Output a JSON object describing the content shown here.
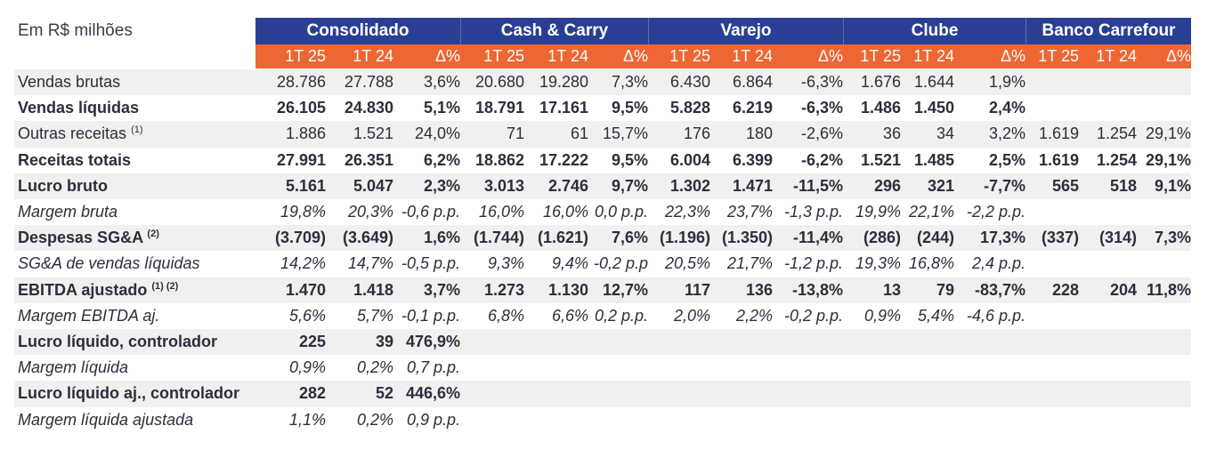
{
  "caption": "Em R$ milhões",
  "groups": [
    "Consolidado",
    "Cash & Carry",
    "Varejo",
    "Clube",
    "Banco Carrefour"
  ],
  "subheaders": [
    "1T 25",
    "1T 24",
    "Δ%"
  ],
  "rows": [
    {
      "label": "Vendas brutas",
      "sup": "",
      "style": "normal",
      "values": [
        "28.786",
        "27.788",
        "3,6%",
        "20.680",
        "19.280",
        "7,3%",
        "6.430",
        "6.864",
        "-6,3%",
        "1.676",
        "1.644",
        "1,9%",
        "",
        "",
        ""
      ]
    },
    {
      "label": "Vendas líquidas",
      "sup": "",
      "style": "bold",
      "values": [
        "26.105",
        "24.830",
        "5,1%",
        "18.791",
        "17.161",
        "9,5%",
        "5.828",
        "6.219",
        "-6,3%",
        "1.486",
        "1.450",
        "2,4%",
        "",
        "",
        ""
      ]
    },
    {
      "label": "Outras receitas",
      "sup": "(1)",
      "style": "normal",
      "values": [
        "1.886",
        "1.521",
        "24,0%",
        "71",
        "61",
        "15,7%",
        "176",
        "180",
        "-2,6%",
        "36",
        "34",
        "3,2%",
        "1.619",
        "1.254",
        "29,1%"
      ]
    },
    {
      "label": "Receitas totais",
      "sup": "",
      "style": "bold",
      "values": [
        "27.991",
        "26.351",
        "6,2%",
        "18.862",
        "17.222",
        "9,5%",
        "6.004",
        "6.399",
        "-6,2%",
        "1.521",
        "1.485",
        "2,5%",
        "1.619",
        "1.254",
        "29,1%"
      ]
    },
    {
      "label": "Lucro bruto",
      "sup": "",
      "style": "bold",
      "values": [
        "5.161",
        "5.047",
        "2,3%",
        "3.013",
        "2.746",
        "9,7%",
        "1.302",
        "1.471",
        "-11,5%",
        "296",
        "321",
        "-7,7%",
        "565",
        "518",
        "9,1%"
      ]
    },
    {
      "label": "Margem bruta",
      "sup": "",
      "style": "italic",
      "values": [
        "19,8%",
        "20,3%",
        "-0,6 p.p.",
        "16,0%",
        "16,0%",
        "0,0 p.p.",
        "22,3%",
        "23,7%",
        "-1,3 p.p.",
        "19,9%",
        "22,1%",
        "-2,2 p.p.",
        "",
        "",
        ""
      ]
    },
    {
      "label": "Despesas SG&A",
      "sup": "(2)",
      "style": "bold",
      "values": [
        "(3.709)",
        "(3.649)",
        "1,6%",
        "(1.744)",
        "(1.621)",
        "7,6%",
        "(1.196)",
        "(1.350)",
        "-11,4%",
        "(286)",
        "(244)",
        "17,3%",
        "(337)",
        "(314)",
        "7,3%"
      ]
    },
    {
      "label": "SG&A de vendas líquidas",
      "sup": "",
      "style": "italic",
      "values": [
        "14,2%",
        "14,7%",
        "-0,5 p.p.",
        "9,3%",
        "9,4%",
        "-0,2 p.p",
        "20,5%",
        "21,7%",
        "-1,2 p.p.",
        "19,3%",
        "16,8%",
        "2,4 p.p.",
        "",
        "",
        ""
      ]
    },
    {
      "label": "EBITDA ajustado",
      "sup": "(1) (2)",
      "style": "bold",
      "values": [
        "1.470",
        "1.418",
        "3,7%",
        "1.273",
        "1.130",
        "12,7%",
        "117",
        "136",
        "-13,8%",
        "13",
        "79",
        "-83,7%",
        "228",
        "204",
        "11,8%"
      ]
    },
    {
      "label": "Margem EBITDA aj.",
      "sup": "",
      "style": "italic",
      "values": [
        "5,6%",
        "5,7%",
        "-0,1 p.p.",
        "6,8%",
        "6,6%",
        "0,2 p.p.",
        "2,0%",
        "2,2%",
        "-0,2 p.p.",
        "0,9%",
        "5,4%",
        "-4,6 p.p.",
        "",
        "",
        ""
      ]
    },
    {
      "label": "Lucro líquido, controlador",
      "sup": "",
      "style": "bold",
      "values": [
        "225",
        "39",
        "476,9%",
        "",
        "",
        "",
        "",
        "",
        "",
        "",
        "",
        "",
        "",
        "",
        ""
      ]
    },
    {
      "label": "Margem líquida",
      "sup": "",
      "style": "italic",
      "values": [
        "0,9%",
        "0,2%",
        "0,7 p.p.",
        "",
        "",
        "",
        "",
        "",
        "",
        "",
        "",
        "",
        "",
        "",
        ""
      ]
    },
    {
      "label": "Lucro líquido aj., controlador",
      "sup": "",
      "style": "bold",
      "values": [
        "282",
        "52",
        "446,6%",
        "",
        "",
        "",
        "",
        "",
        "",
        "",
        "",
        "",
        "",
        "",
        ""
      ]
    },
    {
      "label": "Margem líquida ajustada",
      "sup": "",
      "style": "italic",
      "values": [
        "1,1%",
        "0,2%",
        "0,9 p.p.",
        "",
        "",
        "",
        "",
        "",
        "",
        "",
        "",
        "",
        "",
        "",
        ""
      ]
    }
  ],
  "colors": {
    "header_blue": "#2a3f94",
    "header_orange": "#ee6633",
    "row_shade": "#f0f0f0",
    "text": "#2c2e3d"
  }
}
